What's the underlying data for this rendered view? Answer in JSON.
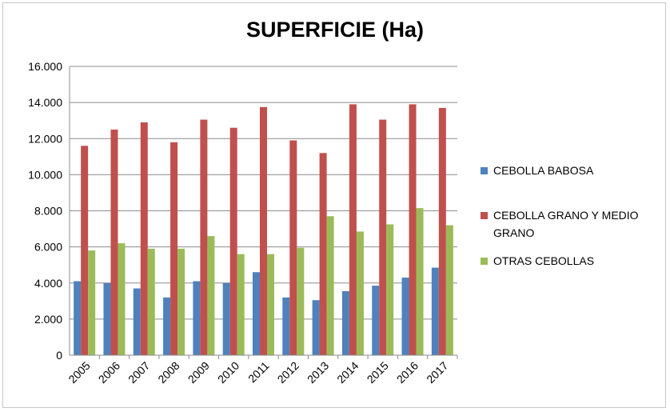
{
  "chart_data": {
    "type": "bar",
    "title": "SUPERFICIE (Ha)",
    "xlabel": "",
    "ylabel": "",
    "categories": [
      "2005",
      "2006",
      "2007",
      "2008",
      "2009",
      "2010",
      "2011",
      "2012",
      "2013",
      "2014",
      "2015",
      "2016",
      "2017"
    ],
    "ylim": [
      0,
      16000
    ],
    "yticks": [
      0,
      2000,
      4000,
      6000,
      8000,
      10000,
      12000,
      14000,
      16000
    ],
    "ytick_labels": [
      "0",
      "2.000",
      "4.000",
      "6.000",
      "8.000",
      "10.000",
      "12.000",
      "14.000",
      "16.000"
    ],
    "grid": true,
    "legend_position": "right",
    "series": [
      {
        "name": "CEBOLLA BABOSA",
        "color": "#4f81bd",
        "values": [
          4100,
          4000,
          3700,
          3200,
          4100,
          4000,
          4600,
          3200,
          3050,
          3550,
          3850,
          4300,
          4850
        ]
      },
      {
        "name": "CEBOLLA GRANO Y MEDIO GRANO",
        "legend_lines": [
          "CEBOLLA GRANO Y MEDIO",
          "GRANO"
        ],
        "color": "#c0504d",
        "values": [
          11600,
          12500,
          12900,
          11800,
          13050,
          12600,
          13750,
          11900,
          11200,
          13900,
          13050,
          13900,
          13700
        ]
      },
      {
        "name": "OTRAS CEBOLLAS",
        "color": "#9bbb59",
        "values": [
          5800,
          6200,
          5900,
          5900,
          6600,
          5600,
          5600,
          5950,
          7700,
          6850,
          7250,
          8150,
          7200
        ]
      }
    ]
  }
}
